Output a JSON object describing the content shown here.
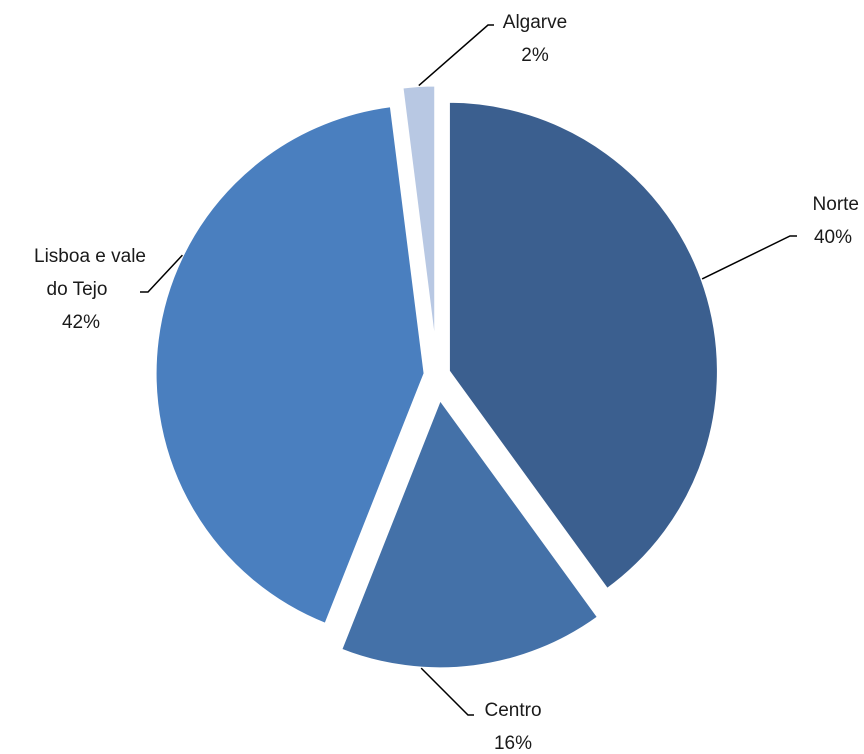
{
  "chart_data": {
    "type": "pie",
    "title": "",
    "slices": [
      {
        "name": "Norte",
        "value": 40,
        "label": "40%",
        "color": "#3b5f8f"
      },
      {
        "name": "Centro",
        "value": 16,
        "label": "16%",
        "color": "#4471a8"
      },
      {
        "name": "Lisboa e vale do Tejo",
        "value": 42,
        "label": "42%",
        "color": "#4a7fbf"
      },
      {
        "name": "Algarve",
        "value": 2,
        "label": "2%",
        "color": "#b8c8e3"
      }
    ],
    "exploded": true,
    "start_angle_deg": 0,
    "direction": "clockwise"
  }
}
